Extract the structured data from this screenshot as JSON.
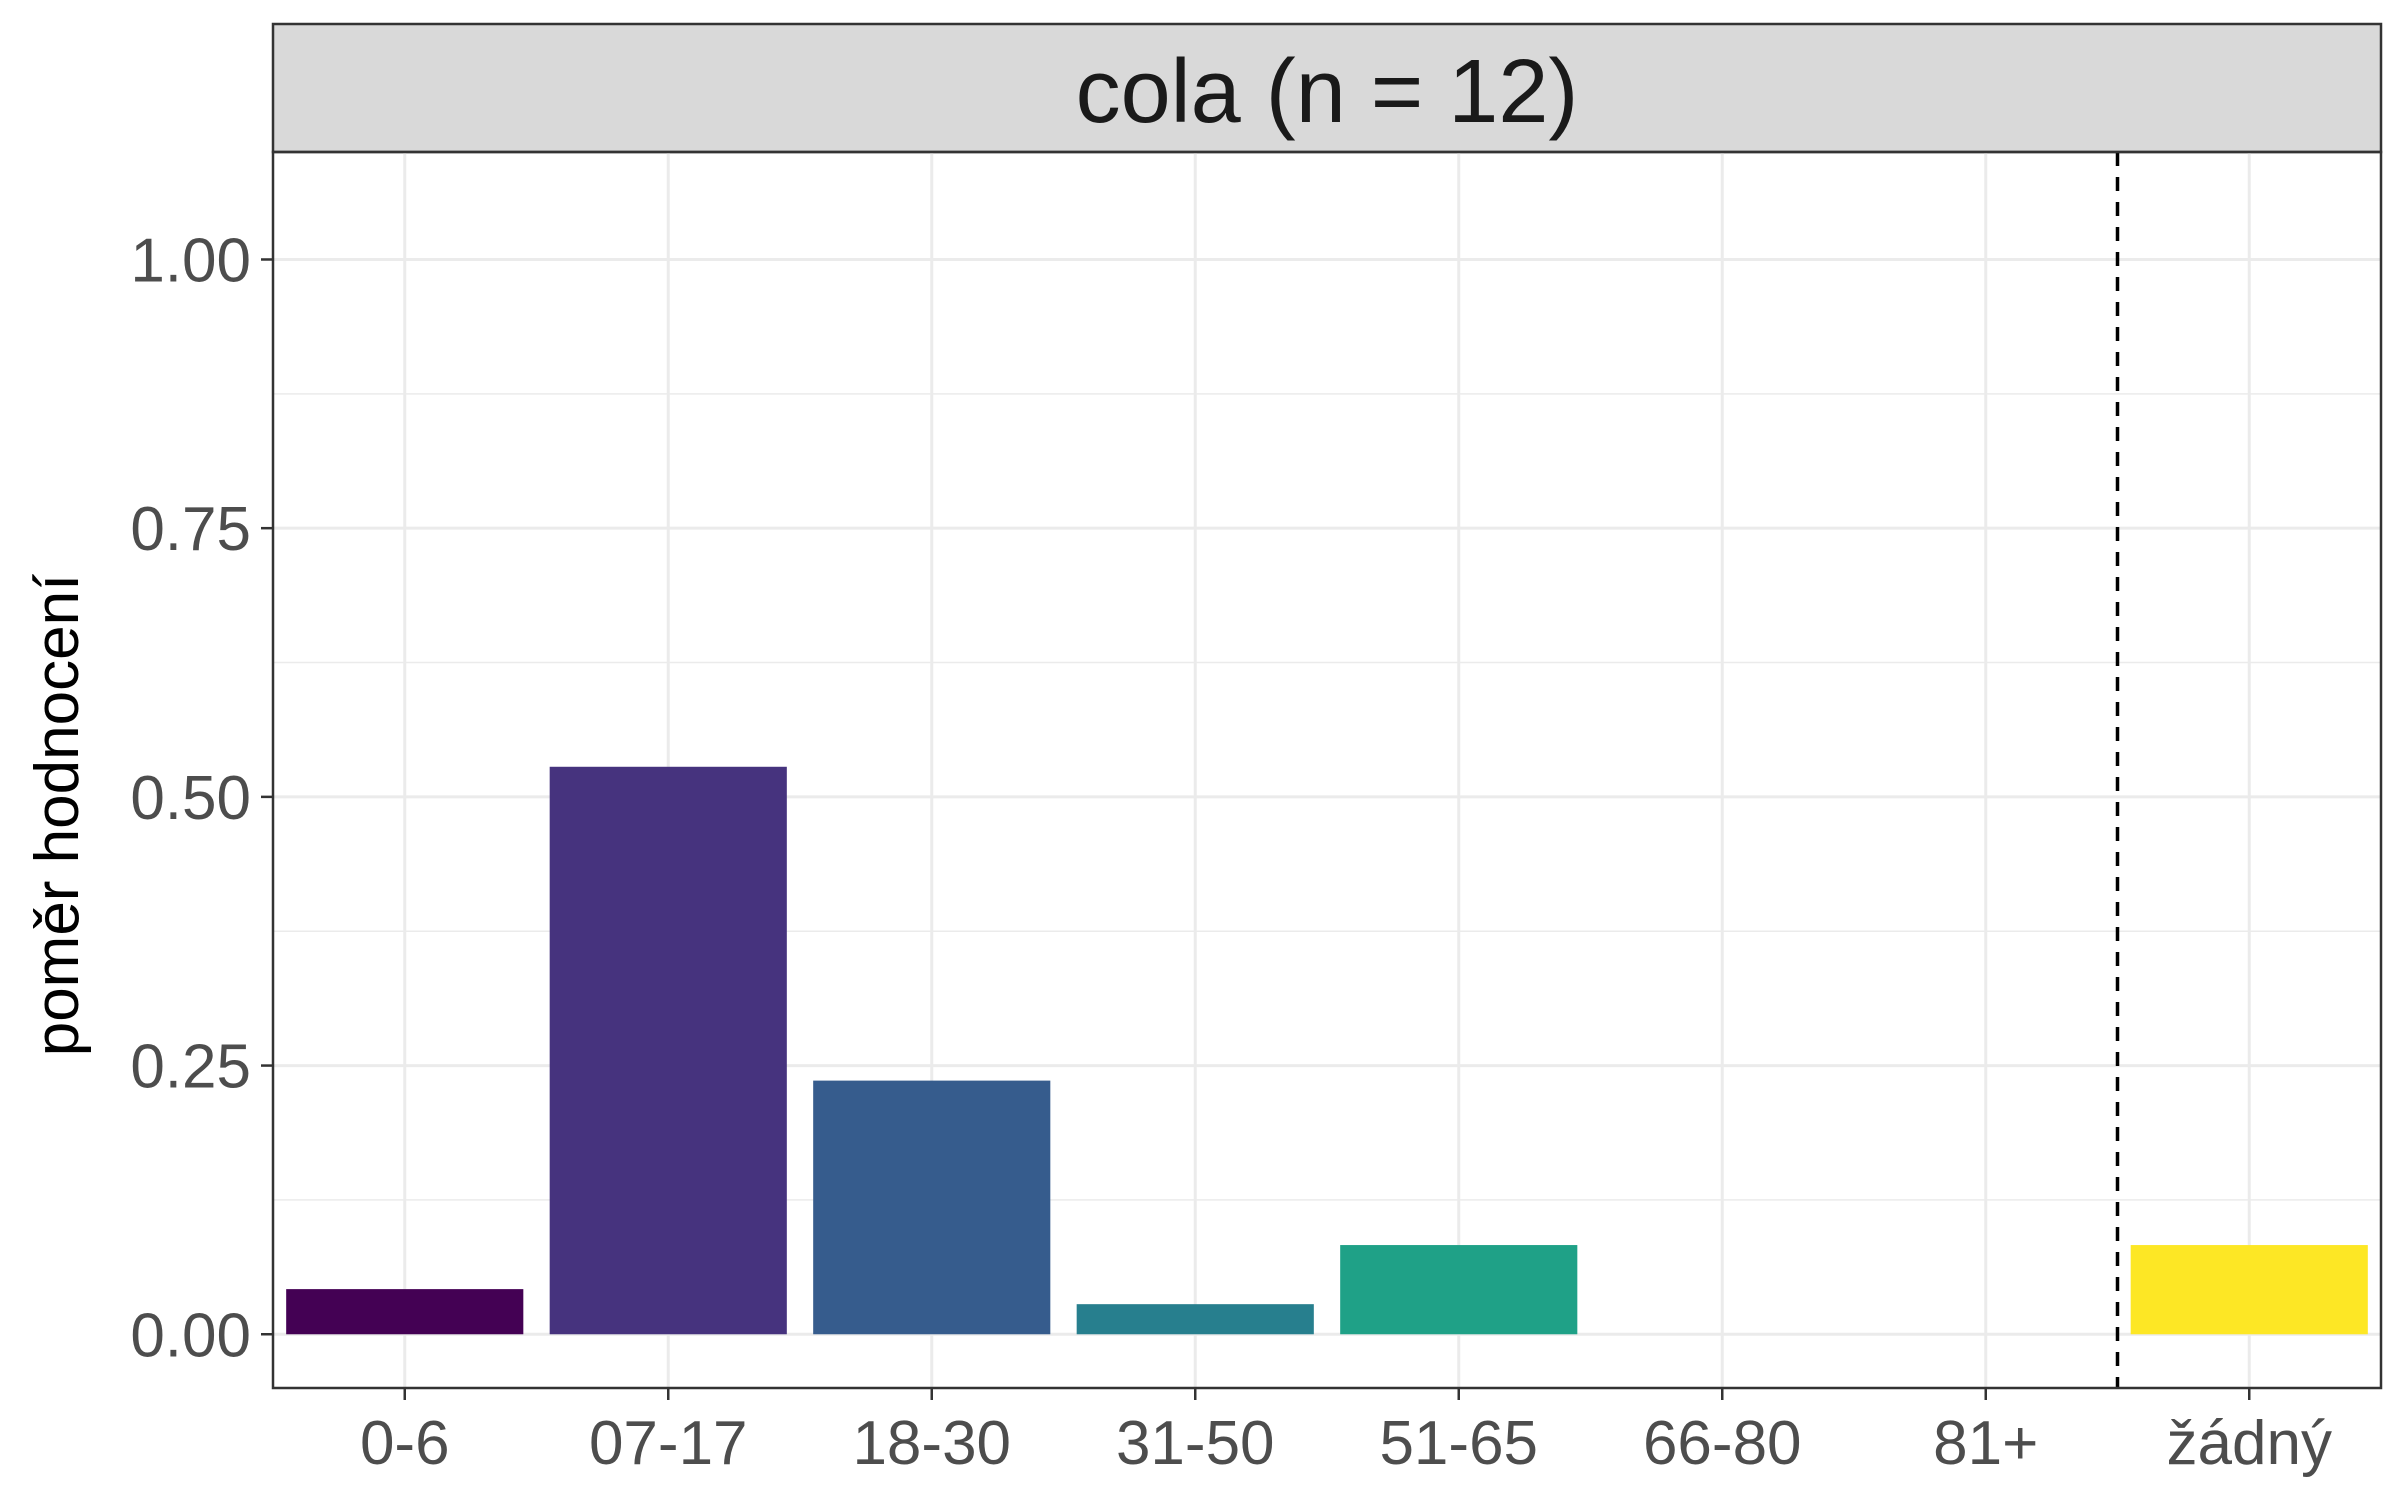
{
  "chart_data": {
    "type": "bar",
    "facet_title": "cola (n = 12)",
    "xlabel": "",
    "ylabel": "poměr hodnocení",
    "categories": [
      "0-6",
      "07-17",
      "18-30",
      "31-50",
      "51-65",
      "66-80",
      "81+",
      "žádný"
    ],
    "values": [
      0.042,
      0.528,
      0.236,
      0.028,
      0.083,
      0.0,
      0.0,
      0.083
    ],
    "colors": [
      "#440154",
      "#46337E",
      "#365C8D",
      "#277F8E",
      "#1FA187",
      "#4AC16D",
      "#9FDA3A",
      "#FDE725"
    ],
    "ylim": [
      -0.05,
      1.1
    ],
    "yticks": [
      "0.00",
      "0.25",
      "0.50",
      "0.75",
      "1.00"
    ],
    "ytick_values": [
      0,
      0.25,
      0.5,
      0.75,
      1.0
    ],
    "reference_line": {
      "between": [
        "81+",
        "žádný"
      ],
      "style": "dashed"
    },
    "grid": true,
    "legend": "none"
  }
}
